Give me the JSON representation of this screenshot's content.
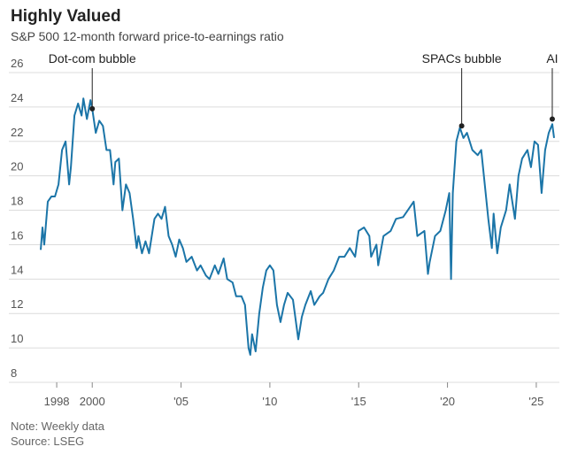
{
  "chart_data": {
    "type": "line",
    "title": "Highly Valued",
    "subtitle": "S&P 500 12-month forward price-to-earnings ratio",
    "note": "Note: Weekly data",
    "source": "Source: LSEG",
    "x": [
      1997.1,
      1997.2,
      1997.3,
      1997.5,
      1997.7,
      1997.9,
      1998.1,
      1998.3,
      1998.5,
      1998.7,
      1998.8,
      1999.0,
      1999.2,
      1999.4,
      1999.5,
      1999.7,
      1999.9,
      2000.0,
      2000.2,
      2000.4,
      2000.6,
      2000.8,
      2001.0,
      2001.2,
      2001.3,
      2001.5,
      2001.7,
      2001.9,
      2002.1,
      2002.3,
      2002.5,
      2002.6,
      2002.8,
      2003.0,
      2003.2,
      2003.5,
      2003.7,
      2003.9,
      2004.1,
      2004.3,
      2004.5,
      2004.7,
      2004.9,
      2005.1,
      2005.3,
      2005.6,
      2005.9,
      2006.1,
      2006.4,
      2006.6,
      2006.9,
      2007.1,
      2007.4,
      2007.6,
      2007.9,
      2008.1,
      2008.4,
      2008.6,
      2008.8,
      2008.9,
      2009.0,
      2009.2,
      2009.4,
      2009.6,
      2009.8,
      2010.0,
      2010.2,
      2010.4,
      2010.6,
      2010.8,
      2011.0,
      2011.3,
      2011.6,
      2011.8,
      2012.0,
      2012.3,
      2012.5,
      2012.8,
      2013.0,
      2013.3,
      2013.6,
      2013.9,
      2014.2,
      2014.5,
      2014.8,
      2015.0,
      2015.3,
      2015.6,
      2015.7,
      2016.0,
      2016.1,
      2016.4,
      2016.8,
      2017.1,
      2017.5,
      2017.9,
      2018.1,
      2018.3,
      2018.7,
      2018.9,
      2019.0,
      2019.3,
      2019.6,
      2019.9,
      2020.1,
      2020.2,
      2020.3,
      2020.5,
      2020.7,
      2020.9,
      2021.1,
      2021.4,
      2021.7,
      2021.9,
      2022.1,
      2022.3,
      2022.5,
      2022.6,
      2022.8,
      2023.0,
      2023.3,
      2023.5,
      2023.8,
      2024.0,
      2024.2,
      2024.5,
      2024.7,
      2024.9,
      2025.1,
      2025.3,
      2025.5,
      2025.7,
      2025.9,
      2026.0
    ],
    "series": [
      {
        "name": "Forward P/E",
        "color": "#1b75a8",
        "values": [
          15.7,
          17.0,
          16.0,
          18.5,
          18.8,
          18.8,
          19.5,
          21.5,
          22.0,
          19.5,
          20.5,
          23.5,
          24.2,
          23.5,
          24.5,
          23.3,
          24.4,
          23.9,
          22.5,
          23.2,
          22.9,
          21.5,
          21.5,
          19.5,
          20.8,
          21.0,
          18.0,
          19.5,
          19.0,
          17.5,
          15.8,
          16.5,
          15.5,
          16.2,
          15.5,
          17.5,
          17.8,
          17.5,
          18.2,
          16.5,
          16.0,
          15.3,
          16.3,
          15.8,
          15.0,
          15.3,
          14.5,
          14.8,
          14.2,
          14.0,
          14.8,
          14.3,
          15.2,
          14.0,
          13.8,
          13.0,
          13.0,
          12.5,
          10.0,
          9.6,
          10.8,
          9.8,
          12.0,
          13.5,
          14.5,
          14.8,
          14.5,
          12.5,
          11.5,
          12.5,
          13.2,
          12.8,
          10.5,
          11.8,
          12.5,
          13.3,
          12.5,
          13.0,
          13.2,
          14.0,
          14.5,
          15.3,
          15.3,
          15.8,
          15.3,
          16.8,
          17.0,
          16.5,
          15.3,
          16.0,
          14.8,
          16.5,
          16.8,
          17.5,
          17.6,
          18.2,
          18.5,
          16.5,
          16.8,
          14.3,
          15.0,
          16.5,
          16.8,
          18.0,
          19.0,
          14.0,
          19.0,
          22.0,
          22.8,
          22.2,
          22.5,
          21.5,
          21.2,
          21.5,
          19.5,
          17.5,
          15.8,
          17.8,
          15.5,
          17.0,
          18.0,
          19.5,
          17.5,
          20.0,
          21.0,
          21.5,
          20.5,
          22.0,
          21.8,
          19.0,
          21.5,
          22.5,
          23.0,
          22.2
        ]
      }
    ],
    "xlim": [
      1996.8,
      2026.3
    ],
    "ylim": [
      8,
      26
    ],
    "yticks": [
      8,
      10,
      12,
      14,
      16,
      18,
      20,
      22,
      24,
      26
    ],
    "xticks": [
      1998,
      2000,
      {
        "value": 2005,
        "label": "'05"
      },
      {
        "value": 2010,
        "label": "'10"
      },
      {
        "value": 2015,
        "label": "'15"
      },
      {
        "value": 2020,
        "label": "'20"
      },
      {
        "value": 2025,
        "label": "'25"
      }
    ],
    "grid": true,
    "annotations": [
      {
        "label": "Dot-com bubble",
        "x": 2000.0,
        "y": 23.9
      },
      {
        "label": "SPACs bubble",
        "x": 2020.8,
        "y": 22.9
      },
      {
        "label": "AI",
        "x": 2025.9,
        "y": 23.3
      }
    ]
  }
}
